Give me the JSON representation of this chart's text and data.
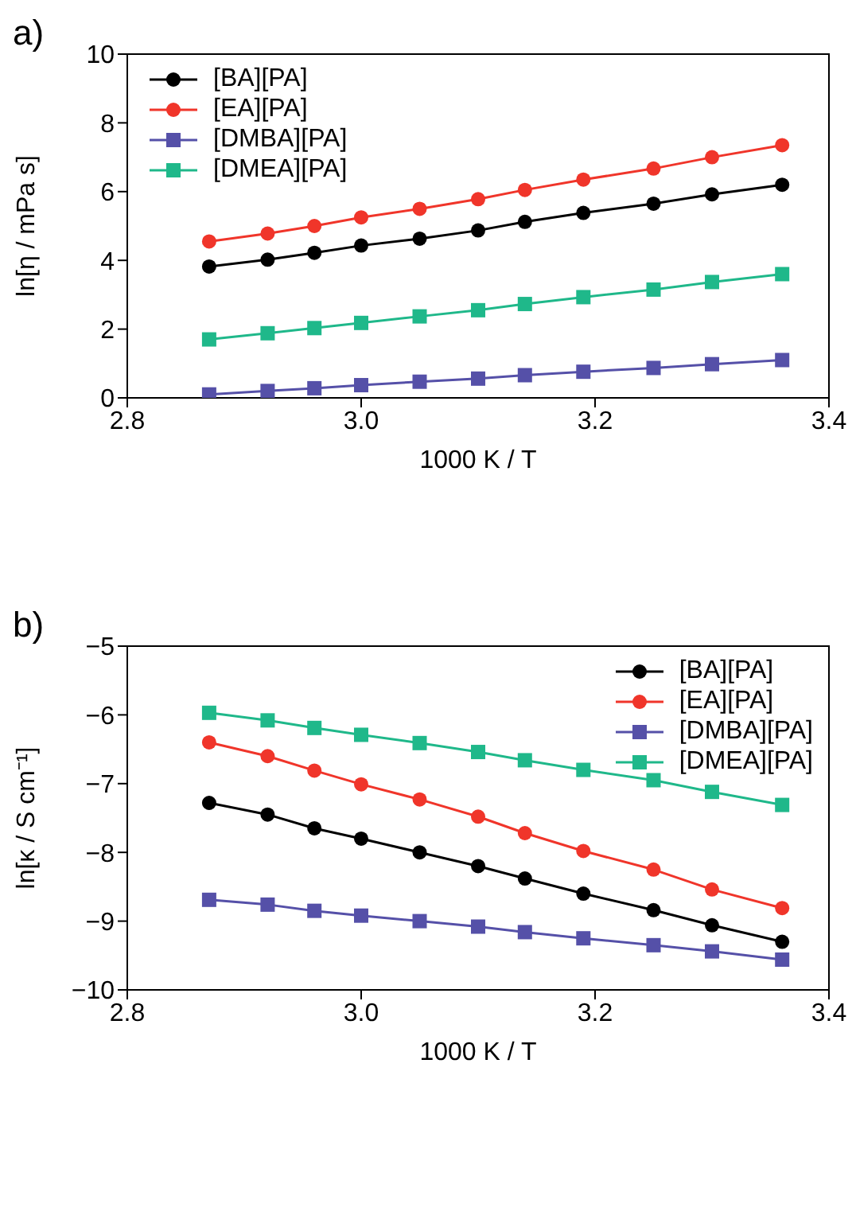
{
  "chart_data": [
    {
      "type": "line",
      "annotations": [
        "a)"
      ],
      "xlabel": "1000 K / T",
      "ylabel": "ln[η / mPa s]",
      "xlim": [
        2.8,
        3.4
      ],
      "xticks": [
        {
          "value": 2.8,
          "label": "2.8"
        },
        {
          "value": 3.0,
          "label": "3.0"
        },
        {
          "value": 3.2,
          "label": "3.2"
        },
        {
          "value": 3.4,
          "label": "3.4"
        }
      ],
      "ylim": [
        0,
        10
      ],
      "yticks": [
        0,
        2,
        4,
        6,
        8,
        10
      ],
      "grid": false,
      "legend": "top left",
      "line_style": "solid",
      "x": [
        2.87,
        2.92,
        2.96,
        3.0,
        3.05,
        3.1,
        3.14,
        3.19,
        3.25,
        3.3,
        3.36
      ],
      "series": [
        {
          "name": "[BA][PA]",
          "color": "#000000",
          "marker": "circle",
          "values": [
            3.82,
            4.02,
            4.22,
            4.43,
            4.63,
            4.87,
            5.12,
            5.38,
            5.65,
            5.92,
            6.2
          ]
        },
        {
          "name": "[EA][PA]",
          "color": "#f0352a",
          "marker": "circle",
          "values": [
            4.55,
            4.78,
            5.0,
            5.25,
            5.5,
            5.78,
            6.05,
            6.35,
            6.67,
            7.0,
            7.35
          ]
        },
        {
          "name": "[DMBA][PA]",
          "color": "#5550a8",
          "marker": "square",
          "values": [
            0.1,
            0.2,
            0.28,
            0.37,
            0.47,
            0.56,
            0.66,
            0.76,
            0.87,
            0.98,
            1.1
          ]
        },
        {
          "name": "[DMEA][PA]",
          "color": "#1fb88a",
          "marker": "square",
          "values": [
            1.7,
            1.88,
            2.03,
            2.18,
            2.37,
            2.55,
            2.73,
            2.93,
            3.15,
            3.37,
            3.6
          ]
        }
      ]
    },
    {
      "type": "line",
      "annotations": [
        "b)"
      ],
      "xlabel": "1000 K / T",
      "ylabel": "ln[κ / S cm⁻¹]",
      "xlim": [
        2.8,
        3.4
      ],
      "xticks": [
        {
          "value": 2.8,
          "label": "2.8"
        },
        {
          "value": 3.0,
          "label": "3.0"
        },
        {
          "value": 3.2,
          "label": "3.2"
        },
        {
          "value": 3.4,
          "label": "3.4"
        }
      ],
      "ylim": [
        -10,
        -5
      ],
      "yticks": [
        {
          "value": -10,
          "label": "−10"
        },
        {
          "value": -9,
          "label": "−9"
        },
        {
          "value": -8,
          "label": "−8"
        },
        {
          "value": -7,
          "label": "−7"
        },
        {
          "value": -6,
          "label": "−6"
        },
        {
          "value": -5,
          "label": "−5"
        }
      ],
      "grid": false,
      "legend": "top right",
      "line_style": "solid",
      "x": [
        2.87,
        2.92,
        2.96,
        3.0,
        3.05,
        3.1,
        3.14,
        3.19,
        3.25,
        3.3,
        3.36
      ],
      "series": [
        {
          "name": "[BA][PA]",
          "color": "#000000",
          "marker": "circle",
          "values": [
            -7.28,
            -7.45,
            -7.65,
            -7.8,
            -8.0,
            -8.2,
            -8.38,
            -8.6,
            -8.84,
            -9.06,
            -9.3
          ]
        },
        {
          "name": "[EA][PA]",
          "color": "#f0352a",
          "marker": "circle",
          "values": [
            -6.4,
            -6.6,
            -6.81,
            -7.01,
            -7.23,
            -7.48,
            -7.72,
            -7.98,
            -8.25,
            -8.54,
            -8.81
          ]
        },
        {
          "name": "[DMBA][PA]",
          "color": "#5550a8",
          "marker": "square",
          "values": [
            -8.69,
            -8.76,
            -8.85,
            -8.92,
            -9.0,
            -9.08,
            -9.16,
            -9.25,
            -9.35,
            -9.44,
            -9.56
          ]
        },
        {
          "name": "[DMEA][PA]",
          "color": "#1fb88a",
          "marker": "square",
          "values": [
            -5.97,
            -6.08,
            -6.19,
            -6.29,
            -6.41,
            -6.54,
            -6.66,
            -6.8,
            -6.95,
            -7.12,
            -7.31
          ]
        }
      ]
    }
  ]
}
